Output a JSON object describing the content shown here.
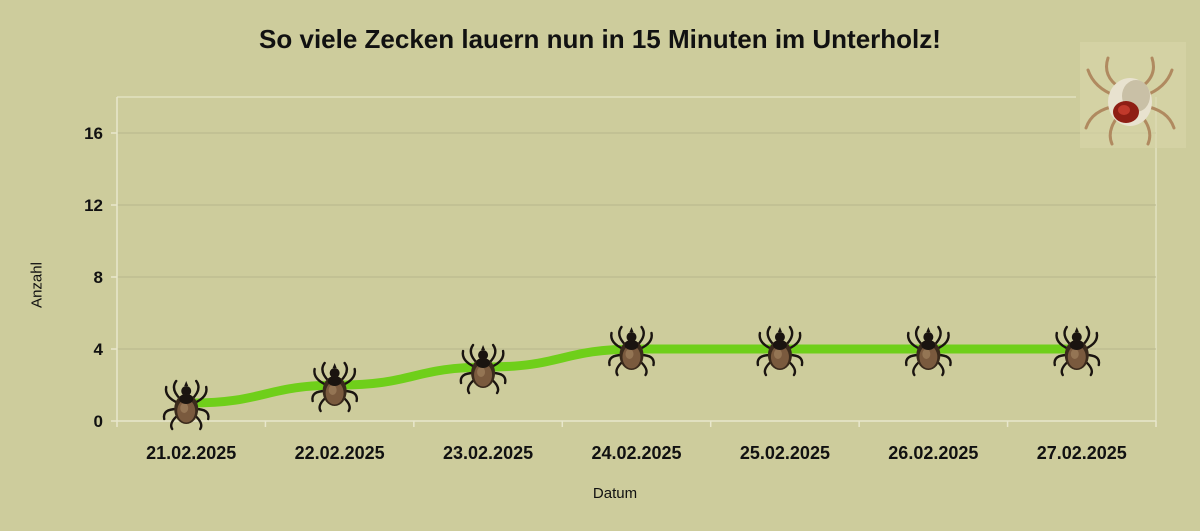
{
  "chart_data": {
    "type": "line",
    "title": "So viele Zecken lauern nun in 15 Minuten im Unterholz!",
    "xlabel": "Datum",
    "ylabel": "Anzahl",
    "categories": [
      "21.02.2025",
      "22.02.2025",
      "23.02.2025",
      "24.02.2025",
      "25.02.2025",
      "26.02.2025",
      "27.02.2025"
    ],
    "series": [
      {
        "values": [
          1,
          2,
          3,
          4,
          4,
          4,
          4
        ]
      }
    ],
    "ylim": [
      0,
      18
    ],
    "yticks": [
      0,
      4,
      8,
      12,
      16
    ],
    "grid": true,
    "line_color": "#6fcf1a",
    "marker": "tick-icon"
  },
  "colors": {
    "background": "#cdcc9c",
    "gridline": "#b3b28a",
    "line": "#6fcf1a"
  }
}
